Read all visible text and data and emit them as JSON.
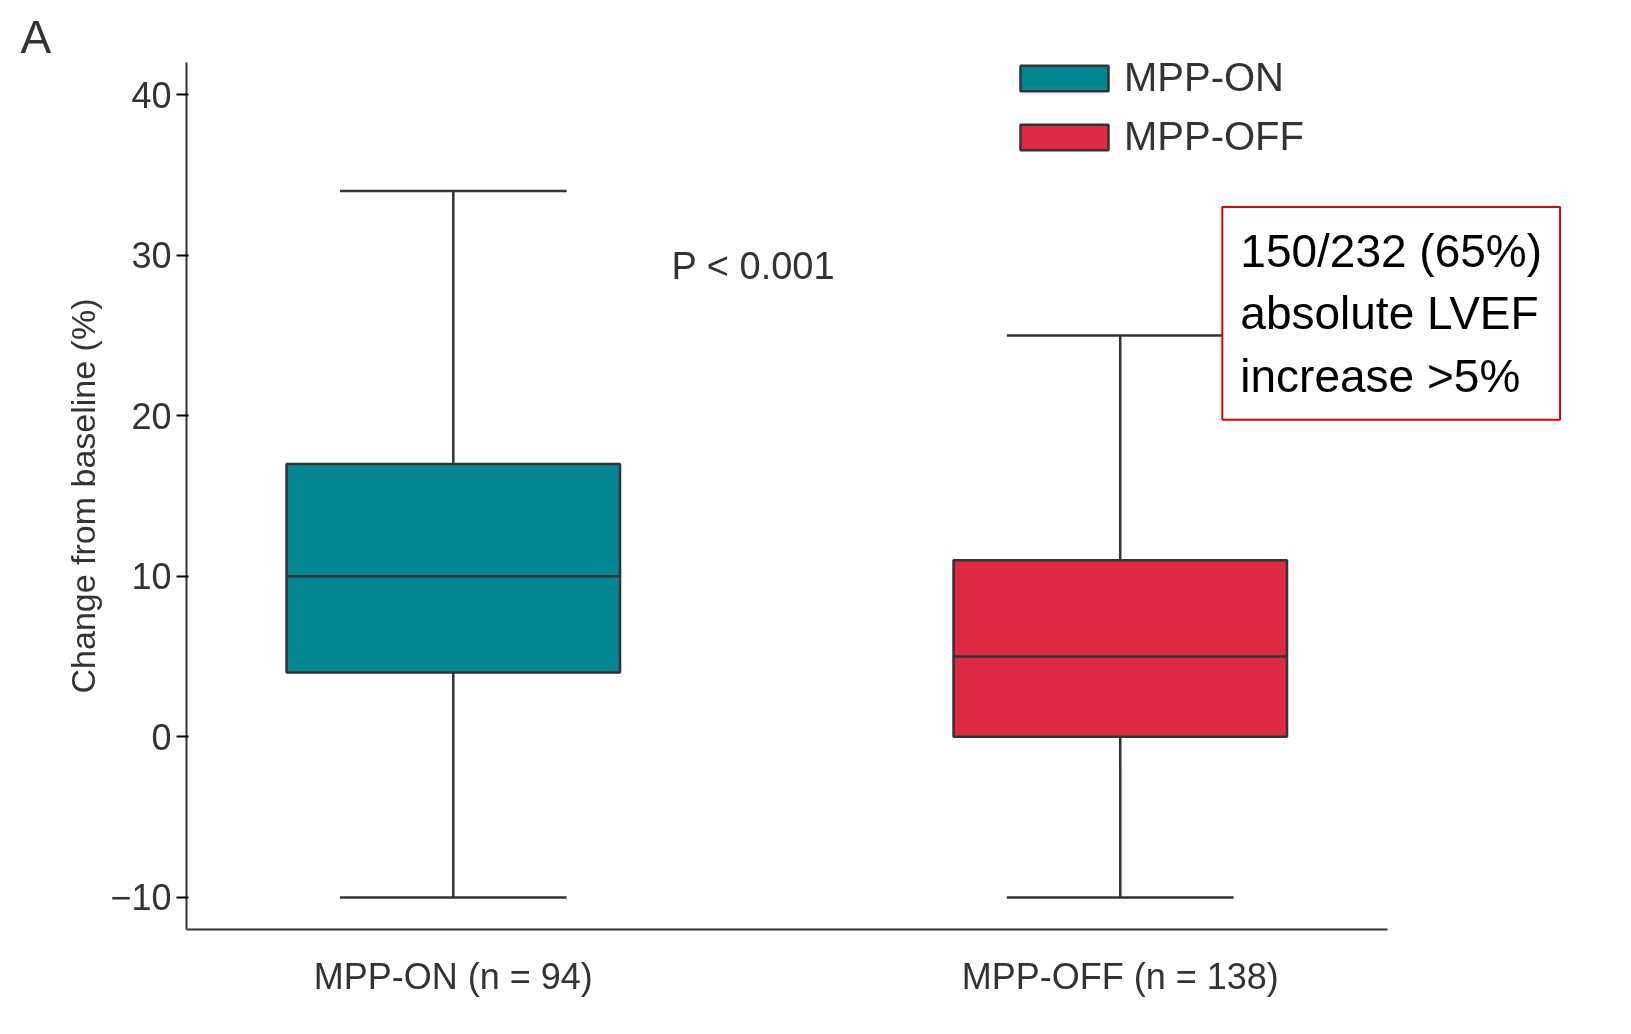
{
  "chart_data": {
    "type": "box",
    "ylabel": "Change from baseline (%)",
    "categories": [
      "MPP-ON (n = 94)",
      "MPP-OFF (n = 138)"
    ],
    "series": [
      {
        "name": "MPP-ON",
        "color": "#048693",
        "boxes": [
          {
            "low": -10,
            "q1": 4,
            "median": 10,
            "q3": 17,
            "high": 34
          },
          null
        ]
      },
      {
        "name": "MPP-OFF",
        "color": "#e02a45",
        "boxes": [
          null,
          {
            "low": -10,
            "q1": 0,
            "median": 5,
            "q3": 11,
            "high": 25
          }
        ]
      }
    ],
    "ylim": [
      -12,
      42
    ],
    "yticks": [
      {
        "value": -10,
        "label": "−10"
      },
      0,
      10,
      20,
      30,
      40
    ],
    "annotations": [
      "A",
      "P < 0.001",
      "150/232 (65%)\nabsolute LVEF\nincrease >5%"
    ],
    "legend": "top right",
    "grid": false
  }
}
